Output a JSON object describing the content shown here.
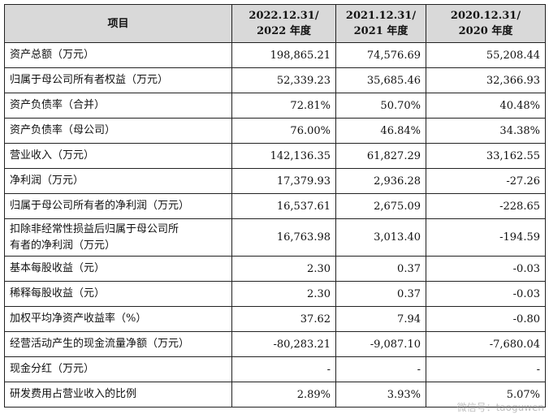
{
  "header": {
    "item": "项目",
    "col1_l1": "2022.12.31/",
    "col1_l2": "2022 年度",
    "col2_l1": "2021.12.31/",
    "col2_l2": "2021 年度",
    "col3_l1": "2020.12.31/",
    "col3_l2": "2020 年度"
  },
  "rows": [
    {
      "label": "资产总额（万元）",
      "v2022": "198,865.21",
      "v2021": "74,576.69",
      "v2020": "55,208.44"
    },
    {
      "label": "归属于母公司所有者权益（万元）",
      "v2022": "52,339.23",
      "v2021": "35,685.46",
      "v2020": "32,366.93"
    },
    {
      "label": "资产负债率（合并）",
      "v2022": "72.81%",
      "v2021": "50.70%",
      "v2020": "40.48%"
    },
    {
      "label": "资产负债率（母公司）",
      "v2022": "76.00%",
      "v2021": "46.84%",
      "v2020": "34.38%"
    },
    {
      "label": "营业收入（万元）",
      "v2022": "142,136.35",
      "v2021": "61,827.29",
      "v2020": "33,162.55"
    },
    {
      "label": "净利润（万元）",
      "v2022": "17,379.93",
      "v2021": "2,936.28",
      "v2020": "-27.26"
    },
    {
      "label": "归属于母公司所有者的净利润（万元）",
      "v2022": "16,537.61",
      "v2021": "2,675.09",
      "v2020": "-228.65"
    },
    {
      "label_l1": "扣除非经常性损益后归属于母公司所",
      "label_l2": "有者的净利润（万元）",
      "v2022": "16,763.98",
      "v2021": "3,013.40",
      "v2020": "-194.59"
    },
    {
      "label": "基本每股收益（元）",
      "v2022": "2.30",
      "v2021": "0.37",
      "v2020": "-0.03"
    },
    {
      "label": "稀释每股收益（元）",
      "v2022": "2.30",
      "v2021": "0.37",
      "v2020": "-0.03"
    },
    {
      "label": "加权平均净资产收益率（%）",
      "v2022": "37.62",
      "v2021": "7.94",
      "v2020": "-0.80"
    },
    {
      "label": "经营活动产生的现金流量净额（万元）",
      "v2022": "-80,283.21",
      "v2021": "-9,087.10",
      "v2020": "-7,680.04"
    },
    {
      "label": "现金分红（万元）",
      "v2022": "-",
      "v2021": "-",
      "v2020": "-"
    },
    {
      "label": "研发费用占营业收入的比例",
      "v2022": "2.89%",
      "v2021": "3.93%",
      "v2020": "5.07%"
    }
  ],
  "watermark": "微信号：taoguwen"
}
